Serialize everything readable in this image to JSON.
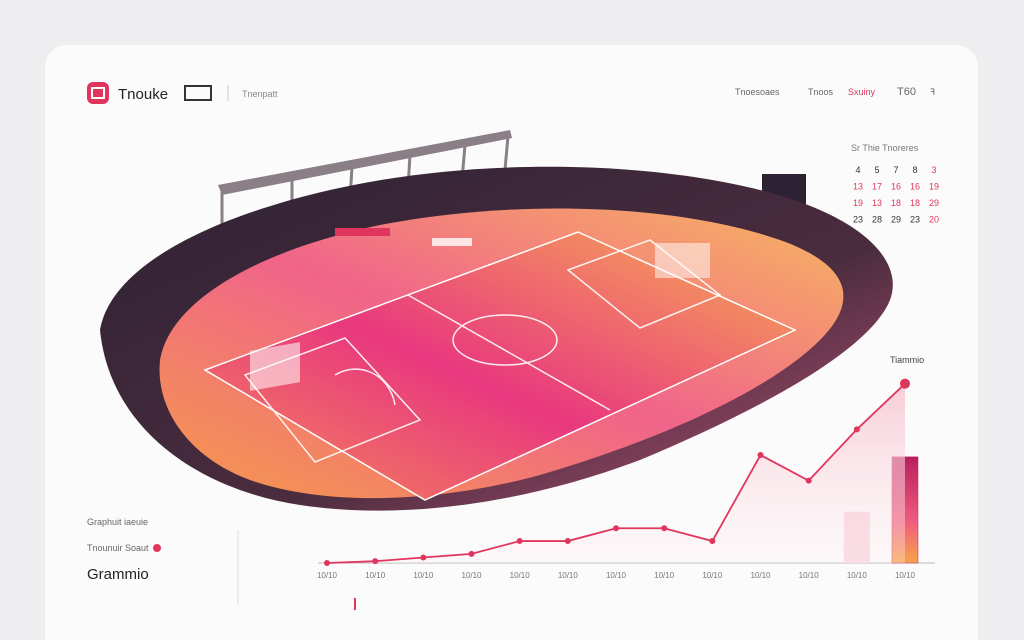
{
  "header": {
    "logo_text": "Tnouke",
    "subtitle": "Tnenpatt",
    "nav": [
      "Tnoesoaes",
      "Tnoos",
      "Sxuiny",
      "T60",
      "ꟻ"
    ]
  },
  "calendar": {
    "header": "Sr Thie Tnoreres",
    "rows": [
      [
        "4",
        "5",
        "7",
        "8",
        "3"
      ],
      [
        "13",
        "17",
        "16",
        "16",
        "19"
      ],
      [
        "19",
        "13",
        "18",
        "18",
        "29"
      ],
      [
        "23",
        "28",
        "29",
        "23",
        "20"
      ]
    ]
  },
  "left_panel": {
    "caption": "Graphuit iaeuie",
    "label": "Tnounuir Soaut",
    "name": "Grammio"
  },
  "chart": {
    "type": "line",
    "label": "Tiammio",
    "ylim": [
      0,
      100
    ],
    "categories": [
      "10/10",
      "10/10",
      "10/10",
      "10/10",
      "10/10",
      "10/10",
      "10/10",
      "10/10",
      "10/10",
      "10/10",
      "10/10",
      "10/10",
      "10/10"
    ],
    "series": [
      {
        "type": "line",
        "color": "#e0365e",
        "values": [
          0,
          1,
          3,
          5,
          12,
          12,
          19,
          19,
          12,
          59,
          45,
          73,
          98
        ]
      },
      {
        "type": "bar",
        "color": "#c41e5a",
        "values": [
          null,
          null,
          null,
          null,
          null,
          null,
          null,
          null,
          null,
          null,
          null,
          28,
          58
        ]
      }
    ]
  }
}
